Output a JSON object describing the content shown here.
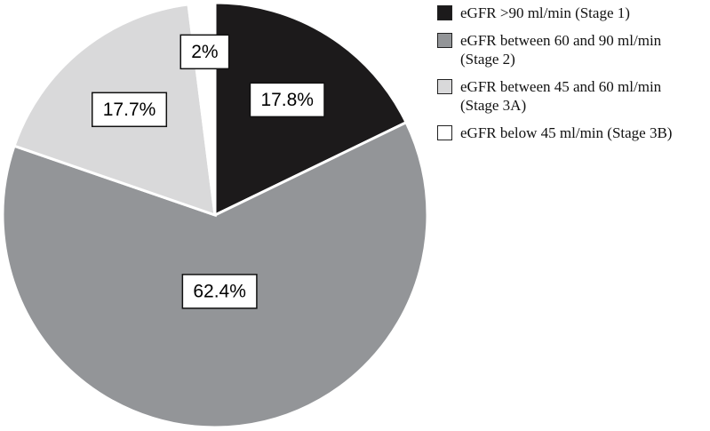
{
  "chart_data": {
    "type": "pie",
    "categories": [
      "eGFR >90 ml/min (Stage 1)",
      "eGFR between 60 and 90 ml/min (Stage 2)",
      "eGFR between 45 and 60 ml/min (Stage 3A)",
      "eGFR below 45 ml/min (Stage 3B)"
    ],
    "values": [
      17.8,
      62.4,
      17.7,
      2
    ],
    "value_labels": [
      "17.8%",
      "62.4%",
      "17.7%",
      "2%"
    ],
    "colors": [
      "#1c1a1b",
      "#939598",
      "#d9d9da",
      "#ffffff"
    ],
    "legend": "right"
  }
}
